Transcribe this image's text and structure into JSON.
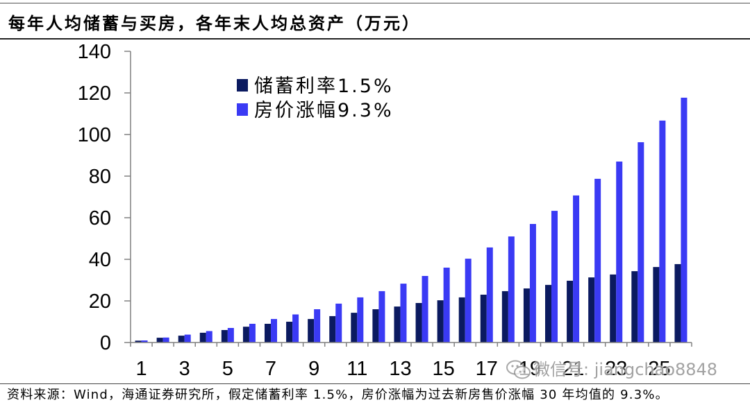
{
  "title": "每年人均储蓄与买房，各年末人均总资产（万元）",
  "source": "资料来源：Wind，海通证券研究所，假定储蓄利率 1.5%，房价涨幅为过去新房售价涨幅 30 年均值的 9.3%。",
  "watermark": {
    "text": "微信号: jiangchao8848",
    "icon": "wechat-icon"
  },
  "colors": {
    "axis": "#808080",
    "savings": "#0b1a60",
    "housing": "#3a3af4"
  },
  "chart_data": {
    "type": "bar",
    "x": [
      1,
      2,
      3,
      4,
      5,
      6,
      7,
      8,
      9,
      10,
      11,
      12,
      13,
      14,
      15,
      16,
      17,
      18,
      19,
      20,
      21,
      22,
      23,
      24,
      25,
      26
    ],
    "x_tick_labels": [
      "1",
      "3",
      "5",
      "7",
      "9",
      "11",
      "13",
      "15",
      "17",
      "19",
      "21",
      "23",
      "25"
    ],
    "ylim": [
      0,
      140
    ],
    "yticks": [
      0,
      20,
      40,
      60,
      80,
      100,
      120,
      140
    ],
    "grid": false,
    "legend_position": "upper-left",
    "series": [
      {
        "name": "储蓄利率1.5%",
        "color": "#0b1a60",
        "values": [
          0.9,
          2.3,
          3.3,
          4.7,
          6.0,
          7.6,
          9.0,
          10.0,
          11.3,
          12.7,
          14.3,
          16.0,
          17.3,
          19.0,
          20.3,
          21.7,
          23.0,
          24.7,
          26.0,
          27.7,
          29.7,
          31.3,
          32.7,
          34.3,
          36.3,
          37.7
        ]
      },
      {
        "name": "房价涨幅9.3%",
        "color": "#3a3af4",
        "values": [
          1.0,
          2.4,
          3.8,
          5.5,
          7.0,
          9.0,
          11.3,
          13.5,
          16.0,
          18.7,
          21.7,
          24.7,
          28.3,
          32.0,
          36.0,
          40.3,
          45.7,
          51.0,
          57.0,
          63.3,
          70.7,
          78.7,
          87.0,
          96.3,
          106.7,
          117.7
        ]
      }
    ]
  }
}
